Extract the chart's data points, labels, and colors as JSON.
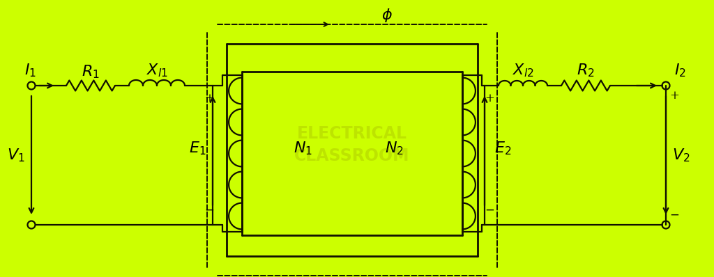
{
  "bg_color": "#CCFF00",
  "line_color": "#111100",
  "text_color": "#000000",
  "fig_width": 10.24,
  "fig_height": 3.98,
  "dpi": 100
}
